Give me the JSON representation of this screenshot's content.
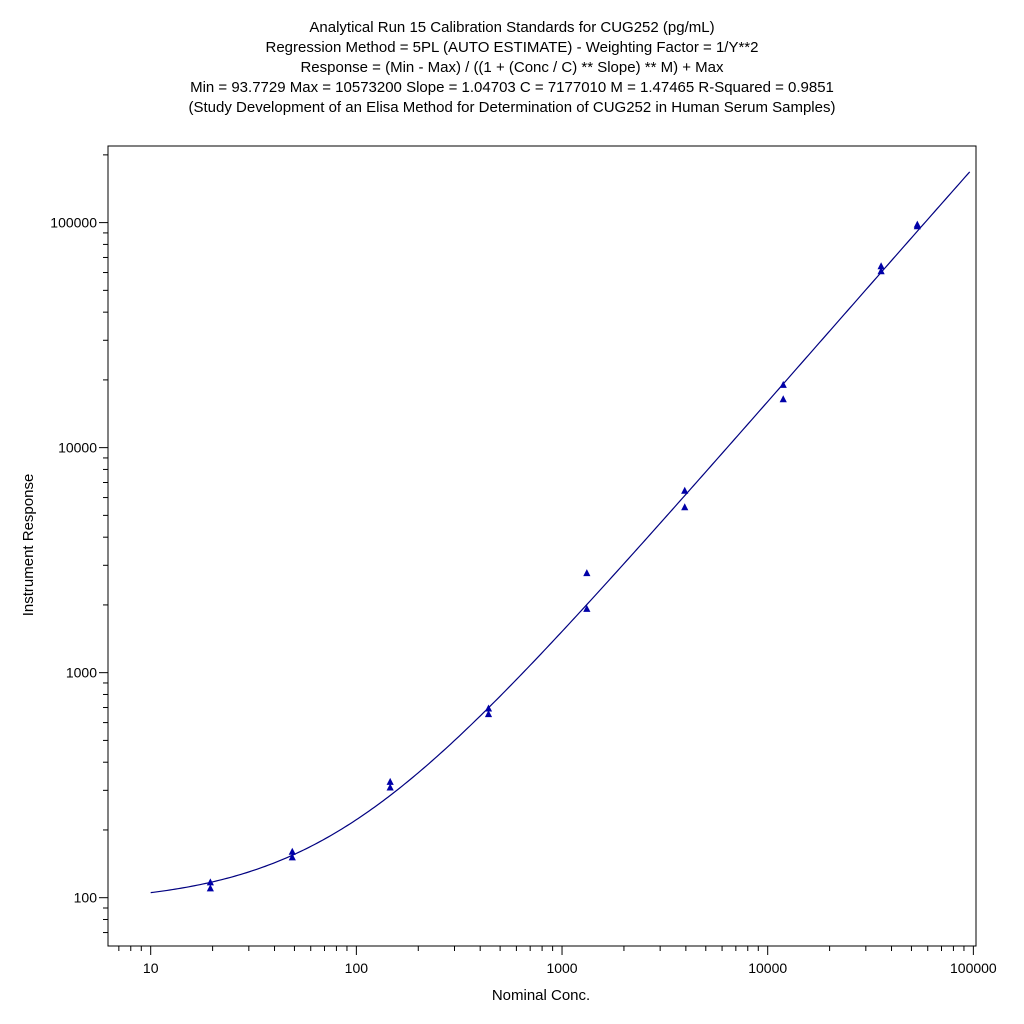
{
  "chart_data": {
    "type": "scatter",
    "title_lines": [
      "Analytical Run 15 Calibration Standards for CUG252 (pg/mL)",
      "Regression Method = 5PL (AUTO ESTIMATE) - Weighting Factor = 1/Y**2",
      "Response = (Min - Max) / ((1 + (Conc / C) ** Slope) ** M) + Max",
      "Min = 93.7729 Max = 10573200 Slope = 1.04703 C = 7177010 M = 1.47465 R-Squared = 0.9851",
      "(Study Development of an Elisa Method for Determination of CUG252 in Human Serum Samples)"
    ],
    "xlabel": "Nominal Conc.",
    "ylabel": "Instrument Response",
    "x_scale": "log",
    "y_scale": "log",
    "xlim": [
      6.2,
      103000
    ],
    "ylim": [
      61,
      219000
    ],
    "x_ticks": [
      {
        "value": 10,
        "label": "10"
      },
      {
        "value": 100,
        "label": "100"
      },
      {
        "value": 1000,
        "label": "1000"
      },
      {
        "value": 10000,
        "label": "10000"
      },
      {
        "value": 100000,
        "label": "100000"
      }
    ],
    "y_ticks": [
      {
        "value": 100,
        "label": "100"
      },
      {
        "value": 1000,
        "label": "1000"
      },
      {
        "value": 10000,
        "label": "10000"
      },
      {
        "value": 100000,
        "label": "100000"
      }
    ],
    "grid": false,
    "legend": "none",
    "marker": "triangle",
    "marker_color": "#0000a8",
    "curve_color": "#000080",
    "series": [
      {
        "points": [
          {
            "x": 19.5,
            "y": 117
          },
          {
            "x": 19.5,
            "y": 110
          },
          {
            "x": 48.8,
            "y": 160
          },
          {
            "x": 48.8,
            "y": 151
          },
          {
            "x": 146,
            "y": 327
          },
          {
            "x": 146,
            "y": 309
          },
          {
            "x": 439,
            "y": 693
          },
          {
            "x": 439,
            "y": 654
          },
          {
            "x": 1320,
            "y": 2770
          },
          {
            "x": 1320,
            "y": 1920
          },
          {
            "x": 3950,
            "y": 6430
          },
          {
            "x": 3950,
            "y": 5430
          },
          {
            "x": 11900,
            "y": 19000
          },
          {
            "x": 11900,
            "y": 16400
          },
          {
            "x": 35600,
            "y": 64000
          },
          {
            "x": 35600,
            "y": 60800
          },
          {
            "x": 53400,
            "y": 98000
          },
          {
            "x": 53400,
            "y": 96300
          }
        ]
      }
    ],
    "fit": {
      "model": "5PL",
      "min": 93.7729,
      "max": 10573200,
      "slope": 1.04703,
      "c": 7177010,
      "m": 1.47465,
      "x_range": [
        10,
        96000
      ]
    }
  }
}
